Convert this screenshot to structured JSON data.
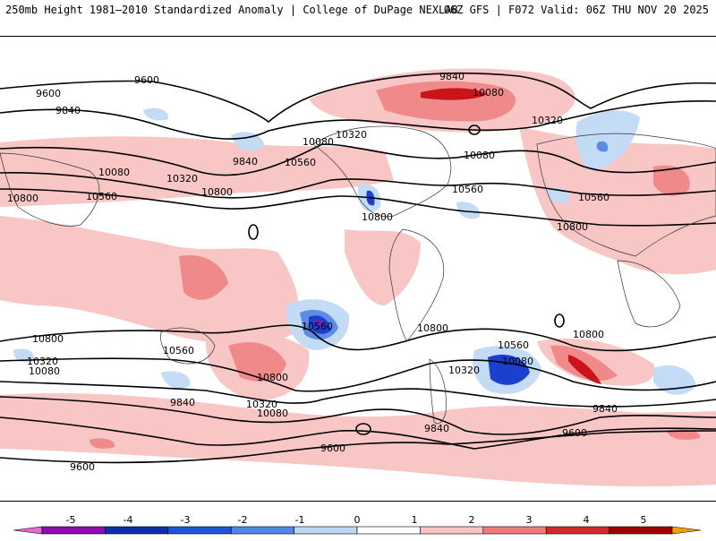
{
  "header": {
    "title": "250mb Height 1981–2010 Standardized Anomaly | College of DuPage NEXLAB",
    "run": "06Z GFS | F072 Valid: 06Z THU NOV 20 2025"
  },
  "contour_labels": [
    "9600",
    "9840",
    "10080",
    "10320",
    "10560",
    "10800"
  ],
  "colorbar": {
    "ticks": [
      "-5",
      "-4",
      "-3",
      "-2",
      "-1",
      "0",
      "1",
      "2",
      "3",
      "4",
      "5"
    ],
    "colors": [
      "#e36bd6",
      "#8f0bb2",
      "#0a2fa8",
      "#1f55d6",
      "#4f86e8",
      "#bcd6f5",
      "#ffffff",
      "#f9c3c3",
      "#f07d7d",
      "#d62828",
      "#a10000",
      "#f2a000"
    ]
  },
  "colors": {
    "pos_light": "#f9c6c6",
    "pos_med": "#f08a8a",
    "pos_dark": "#c8141a",
    "neg_light": "#c4dbf5",
    "neg_med": "#5b8ce6",
    "neg_dark": "#1c3fd0",
    "neg_purple": "#7a1fb3"
  }
}
